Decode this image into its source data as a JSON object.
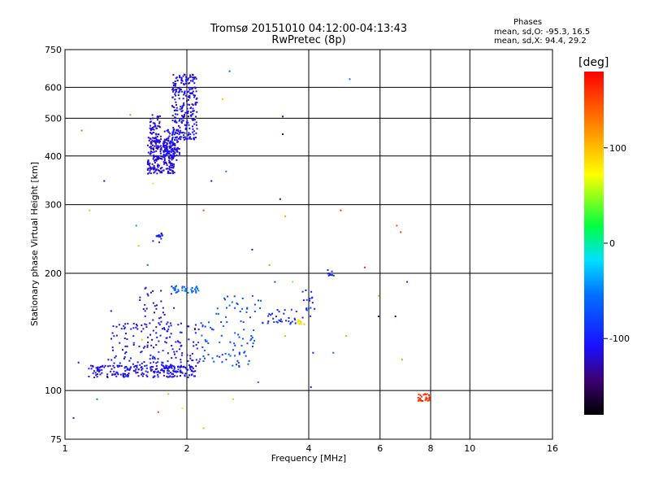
{
  "header": {
    "title_line1": "Tromsø 20151010 04:12:00-04:13:43",
    "title_line2": "RwPretec (8p)",
    "phase_heading": "Phases",
    "phase_o": "mean, sd,O: -95.3, 16.5",
    "phase_x": "mean, sd,X:  94.4, 29.2"
  },
  "colorbar": {
    "unit_label": "[deg]",
    "ticks": [
      100,
      0,
      -100
    ],
    "range": [
      -180,
      180
    ]
  },
  "chart_data": {
    "type": "scatter",
    "title": "Tromsø 20151010 04:12:00-04:13:43",
    "subtitle": "RwPretec (8p)",
    "xlabel": "Frequency [MHz]",
    "ylabel": "Stationary phase Virtual Height [km]",
    "xscale": "log2",
    "yscale": "log",
    "xlim": [
      1,
      16
    ],
    "ylim": [
      75,
      750
    ],
    "xticks": [
      1,
      2,
      4,
      6,
      8,
      10,
      16
    ],
    "yticks": [
      75,
      100,
      200,
      300,
      400,
      500,
      600,
      750
    ],
    "grid": true,
    "color_by": "phase [deg]",
    "clusters": [
      {
        "fmin": 1.6,
        "fmax": 1.87,
        "hmin": 360,
        "hmax": 450,
        "phase": -118,
        "n": 260
      },
      {
        "fmin": 1.62,
        "fmax": 1.72,
        "hmin": 420,
        "hmax": 510,
        "phase": -115,
        "n": 60
      },
      {
        "fmin": 1.75,
        "fmax": 1.93,
        "hmin": 380,
        "hmax": 470,
        "phase": -112,
        "n": 70
      },
      {
        "fmin": 1.84,
        "fmax": 2.12,
        "hmin": 440,
        "hmax": 650,
        "phase": -112,
        "n": 260
      },
      {
        "fmin": 1.65,
        "fmax": 1.75,
        "hmin": 240,
        "hmax": 255,
        "phase": -100,
        "n": 14
      },
      {
        "fmin": 1.14,
        "fmax": 2.1,
        "hmin": 108,
        "hmax": 116,
        "phase": -112,
        "n": 210
      },
      {
        "fmin": 1.3,
        "fmax": 2.15,
        "hmin": 112,
        "hmax": 150,
        "phase": -108,
        "n": 180
      },
      {
        "fmin": 1.52,
        "fmax": 1.88,
        "hmin": 150,
        "hmax": 185,
        "phase": -115,
        "n": 30
      },
      {
        "fmin": 1.85,
        "fmax": 2.15,
        "hmin": 178,
        "hmax": 186,
        "phase": -60,
        "n": 35
      },
      {
        "fmin": 2.1,
        "fmax": 2.95,
        "hmin": 115,
        "hmax": 150,
        "phase": -75,
        "n": 70
      },
      {
        "fmin": 2.35,
        "fmax": 3.05,
        "hmin": 150,
        "hmax": 175,
        "phase": -70,
        "n": 28
      },
      {
        "fmin": 3.05,
        "fmax": 3.75,
        "hmin": 148,
        "hmax": 162,
        "phase": -98,
        "n": 32
      },
      {
        "fmin": 3.85,
        "fmax": 4.15,
        "hmin": 150,
        "hmax": 185,
        "phase": -92,
        "n": 18
      },
      {
        "fmin": 4.45,
        "fmax": 4.62,
        "hmin": 196,
        "hmax": 205,
        "phase": -90,
        "n": 10
      },
      {
        "fmin": 3.75,
        "fmax": 3.85,
        "hmin": 148,
        "hmax": 152,
        "phase": 85,
        "n": 8
      },
      {
        "fmin": 7.45,
        "fmax": 7.95,
        "hmin": 94,
        "hmax": 98,
        "phase": 160,
        "n": 26
      }
    ],
    "scattered_points": [
      [
        1.05,
        85,
        -90
      ],
      [
        1.08,
        118,
        -115
      ],
      [
        1.1,
        465,
        135
      ],
      [
        1.15,
        290,
        100
      ],
      [
        1.25,
        345,
        -115
      ],
      [
        1.3,
        160,
        -115
      ],
      [
        1.28,
        120,
        -115
      ],
      [
        1.45,
        510,
        120
      ],
      [
        1.5,
        265,
        -40
      ],
      [
        1.52,
        235,
        100
      ],
      [
        1.6,
        210,
        -60
      ],
      [
        1.7,
        88,
        150
      ],
      [
        1.8,
        98,
        110
      ],
      [
        1.95,
        90,
        80
      ],
      [
        2.1,
        500,
        100
      ],
      [
        2.2,
        80,
        100
      ],
      [
        2.2,
        290,
        150
      ],
      [
        2.3,
        345,
        -110
      ],
      [
        2.45,
        560,
        100
      ],
      [
        2.5,
        365,
        -50
      ],
      [
        2.55,
        660,
        -60
      ],
      [
        2.6,
        95,
        100
      ],
      [
        2.9,
        230,
        -120
      ],
      [
        3.0,
        105,
        -60
      ],
      [
        3.2,
        210,
        120
      ],
      [
        3.3,
        190,
        -80
      ],
      [
        3.4,
        310,
        -130
      ],
      [
        3.45,
        505,
        -110
      ],
      [
        3.45,
        455,
        -130
      ],
      [
        3.5,
        280,
        110
      ],
      [
        3.5,
        138,
        110
      ],
      [
        3.65,
        190,
        40
      ],
      [
        3.9,
        148,
        100
      ],
      [
        4.05,
        102,
        -110
      ],
      [
        4.1,
        125,
        -100
      ],
      [
        4.6,
        125,
        -60
      ],
      [
        4.8,
        290,
        160
      ],
      [
        4.95,
        138,
        110
      ],
      [
        5.05,
        630,
        -50
      ],
      [
        5.5,
        207,
        165
      ],
      [
        5.95,
        175,
        110
      ],
      [
        5.95,
        155,
        -130
      ],
      [
        6.55,
        155,
        -150
      ],
      [
        6.6,
        265,
        150
      ],
      [
        6.75,
        255,
        155
      ],
      [
        6.8,
        120,
        120
      ],
      [
        7.0,
        190,
        -100
      ],
      [
        1.2,
        95,
        -50
      ],
      [
        1.55,
        135,
        100
      ],
      [
        1.65,
        340,
        60
      ]
    ]
  }
}
